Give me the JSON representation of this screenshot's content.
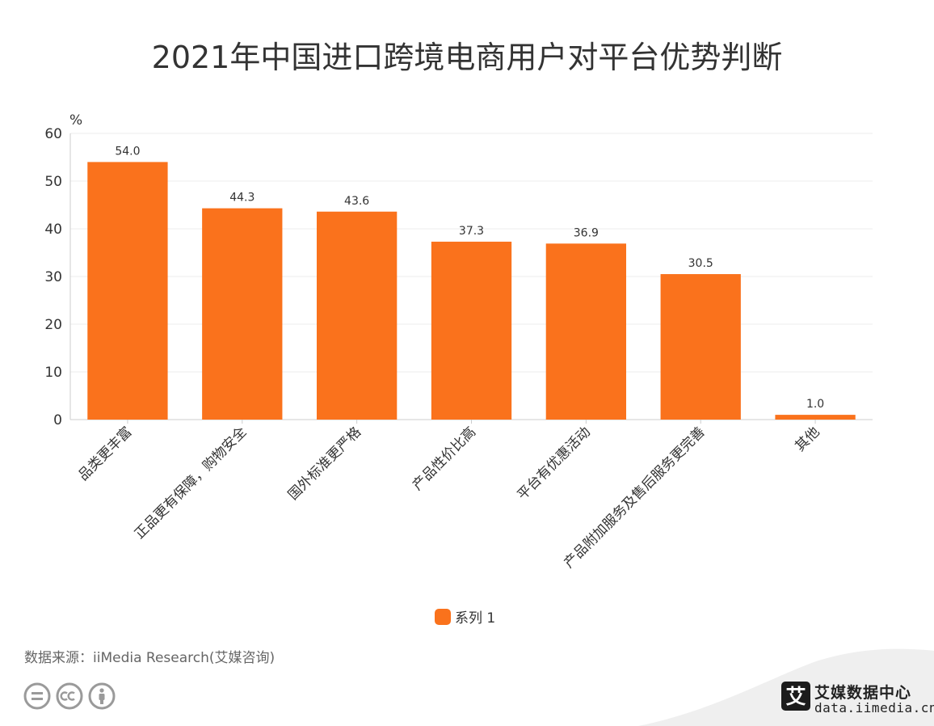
{
  "title": "2021年中国进口跨境电商用户对平台优势判断",
  "chart_data": {
    "type": "bar",
    "title": "2021年中国进口跨境电商用户对平台优势判断",
    "ylabel": "%",
    "xlabel": "",
    "ylim": [
      0,
      60
    ],
    "yticks": [
      0,
      10,
      20,
      30,
      40,
      50,
      60
    ],
    "grid": true,
    "legend_position": "bottom",
    "categories": [
      "品类更丰富",
      "正品更有保障，购物安全",
      "国外标准更严格",
      "产品性价比高",
      "平台有优惠活动",
      "产品附加服务及售后服务更完善",
      "其他"
    ],
    "series": [
      {
        "name": "系列 1",
        "values": [
          54.0,
          44.3,
          43.6,
          37.3,
          36.9,
          30.5,
          1.0
        ],
        "color": "#FA721C"
      }
    ],
    "data_labels": [
      "54.0",
      "44.3",
      "43.6",
      "37.3",
      "36.9",
      "30.5",
      "1.0"
    ]
  },
  "source": "数据来源：iiMedia Research(艾媒咨询)",
  "brand": {
    "name": "艾媒数据中心",
    "url": "data.iimedia.cn",
    "logo_char": "艾"
  },
  "colors": {
    "bar": "#FA721C",
    "grid": "#EEEEEE",
    "axis": "#CCCCCC",
    "text": "#333333",
    "muted": "#666666"
  },
  "icons": [
    "equals-icon",
    "cc-icon",
    "person-icon"
  ]
}
